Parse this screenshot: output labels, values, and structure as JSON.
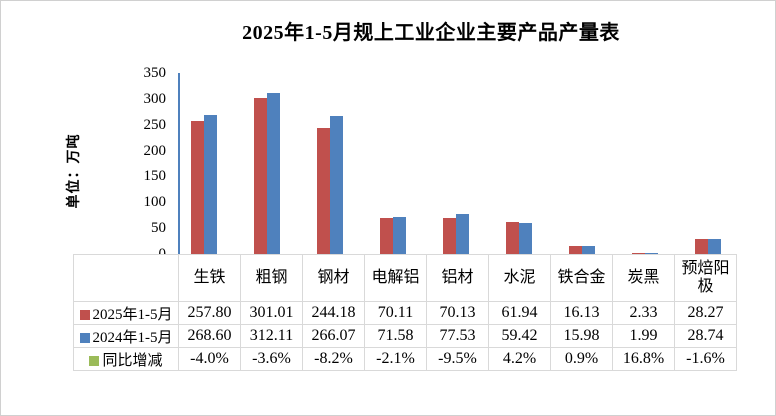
{
  "colors": {
    "series_red": "#C0504D",
    "series_blue": "#4F81BD",
    "series_green": "#9BBB59",
    "axis_line": "#4F81BD",
    "table_border": "#D9D9D9"
  },
  "chart_data": {
    "type": "bar",
    "title": "2025年1-5月规上工业企业主要产品产量表",
    "ylabel": "单位：万吨",
    "xlabel": "",
    "ylim": [
      0,
      350
    ],
    "yticks": [
      350,
      300,
      250,
      200,
      150,
      100,
      50,
      0
    ],
    "grid": false,
    "legend_position": "data-table-row-labels",
    "categories": [
      "生铁",
      "粗钢",
      "钢材",
      "电解铝",
      "铝材",
      "水泥",
      "铁合金",
      "炭黑",
      "预焙阳极"
    ],
    "series": [
      {
        "name": "2025年1-5月",
        "color": "#C0504D",
        "values": [
          257.8,
          301.01,
          244.18,
          70.11,
          70.13,
          61.94,
          16.13,
          2.33,
          28.27
        ],
        "display": [
          "257.80",
          "301.01",
          "244.18",
          "70.11",
          "70.13",
          "61.94",
          "16.13",
          "2.33",
          "28.27"
        ]
      },
      {
        "name": "2024年1-5月",
        "color": "#4F81BD",
        "values": [
          268.6,
          312.11,
          266.07,
          71.58,
          77.53,
          59.42,
          15.98,
          1.99,
          28.74
        ],
        "display": [
          "268.60",
          "312.11",
          "266.07",
          "71.58",
          "77.53",
          "59.42",
          "15.98",
          "1.99",
          "28.74"
        ]
      },
      {
        "name": "同比增减",
        "color": "#9BBB59",
        "display": [
          "-4.0%",
          "-3.6%",
          "-8.2%",
          "-2.1%",
          "-9.5%",
          "4.2%",
          "0.9%",
          "16.8%",
          "-1.6%"
        ]
      }
    ]
  }
}
